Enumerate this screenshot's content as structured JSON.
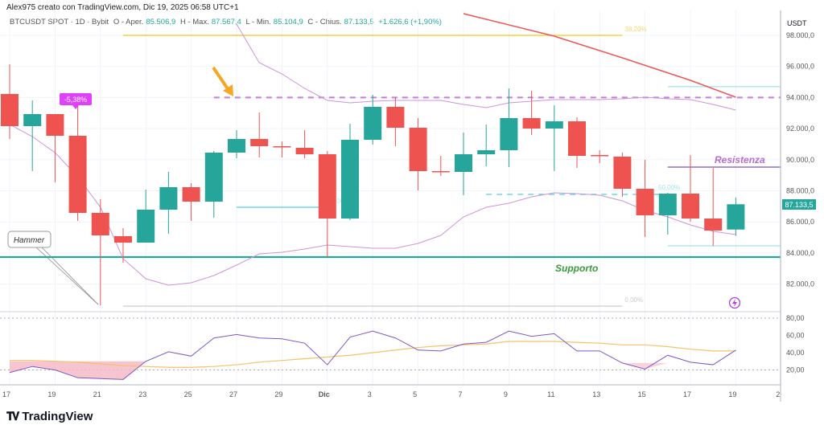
{
  "header": {
    "credit": "Alex975 creato con TradingView.com, Dic 19, 2025 06:58 UTC+1",
    "symbol": "BTCUSDT SPOT · 1D · Bybit",
    "open_label": "O - Aper.",
    "open_value": "85.506,9",
    "high_label": "H - Max.",
    "high_value": "87.567,4",
    "low_label": "L - Min.",
    "low_value": "85.104,9",
    "close_label": "C - Chius.",
    "close_value": "87.133,5",
    "change": "+1.626,6 (+1,90%)"
  },
  "logo": {
    "text": "TradingView"
  },
  "colors": {
    "up": "#26a69a",
    "down": "#ef5350",
    "bollinger": "#ce93d8",
    "ma": "#f05454",
    "rsi": "#7e57c2",
    "rsi_ma": "#f5c26b",
    "support": "#26a69a",
    "resistance": "#7b4fc9",
    "fib38": "#f5c518",
    "fib50": "#4dd0e1"
  },
  "chart_data": [
    {
      "type": "candlestick",
      "currency": "USDT",
      "ylim": [
        80000,
        99000
      ],
      "y_ticks": [
        "98.000,0",
        "96.000,0",
        "94.000,0",
        "92.000,0",
        "90.000,0",
        "88.000,0",
        "86.000,0",
        "84.000,0",
        "82.000,0"
      ],
      "y_tick_values": [
        98000,
        96000,
        94000,
        92000,
        90000,
        88000,
        86000,
        84000,
        82000
      ],
      "x_ticks": [
        "17",
        "19",
        "21",
        "23",
        "25",
        "27",
        "29",
        "Dic",
        "3",
        "5",
        "7",
        "9",
        "11",
        "13",
        "15",
        "17",
        "19",
        "2"
      ],
      "last_price_label": "87.133,5",
      "candles": [
        {
          "date": "Nov 17",
          "o": 94227,
          "h": 96140,
          "l": 91333,
          "c": 92160
        },
        {
          "date": "Nov 18",
          "o": 92160,
          "h": 93814,
          "l": 89266,
          "c": 92935
        },
        {
          "date": "Nov 19",
          "o": 92935,
          "h": 92935,
          "l": 88543,
          "c": 91540
        },
        {
          "date": "Nov 20",
          "o": 91540,
          "h": 93452,
          "l": 86062,
          "c": 86579
        },
        {
          "date": "Nov 21",
          "o": 86579,
          "h": 87457,
          "l": 80636,
          "c": 85132
        },
        {
          "date": "Nov 22",
          "o": 85080,
          "h": 85597,
          "l": 83374,
          "c": 84667
        },
        {
          "date": "Nov 23",
          "o": 84667,
          "h": 88078,
          "l": 84667,
          "c": 86785
        },
        {
          "date": "Nov 24",
          "o": 86785,
          "h": 89214,
          "l": 85235,
          "c": 88233
        },
        {
          "date": "Nov 25",
          "o": 88233,
          "h": 88491,
          "l": 86062,
          "c": 87302
        },
        {
          "date": "Nov 26",
          "o": 87302,
          "h": 90558,
          "l": 86268,
          "c": 90455
        },
        {
          "date": "Nov 27",
          "o": 90455,
          "h": 91902,
          "l": 90093,
          "c": 91333
        },
        {
          "date": "Nov 28",
          "o": 91333,
          "h": 93039,
          "l": 90145,
          "c": 90868
        },
        {
          "date": "Nov 29",
          "o": 90868,
          "h": 91178,
          "l": 90145,
          "c": 90816
        },
        {
          "date": "Nov 30",
          "o": 90765,
          "h": 91902,
          "l": 90093,
          "c": 90351
        },
        {
          "date": "Dec 1",
          "o": 90351,
          "h": 90558,
          "l": 83736,
          "c": 86216
        },
        {
          "date": "Dec 2",
          "o": 86216,
          "h": 92315,
          "l": 86113,
          "c": 91281
        },
        {
          "date": "Dec 3",
          "o": 91281,
          "h": 94176,
          "l": 90972,
          "c": 93400
        },
        {
          "date": "Dec 4",
          "o": 93400,
          "h": 94021,
          "l": 90868,
          "c": 92057
        },
        {
          "date": "Dec 5",
          "o": 92057,
          "h": 92677,
          "l": 88026,
          "c": 89266
        },
        {
          "date": "Dec 6",
          "o": 89266,
          "h": 90248,
          "l": 88956,
          "c": 89214
        },
        {
          "date": "Dec 7",
          "o": 89214,
          "h": 91747,
          "l": 87715,
          "c": 90351
        },
        {
          "date": "Dec 8",
          "o": 90351,
          "h": 92264,
          "l": 89576,
          "c": 90610
        },
        {
          "date": "Dec 9",
          "o": 90610,
          "h": 94589,
          "l": 89524,
          "c": 92677
        },
        {
          "date": "Dec 10",
          "o": 92677,
          "h": 94434,
          "l": 91592,
          "c": 92005
        },
        {
          "date": "Dec 11",
          "o": 92005,
          "h": 93504,
          "l": 89266,
          "c": 92470
        },
        {
          "date": "Dec 12",
          "o": 92470,
          "h": 92729,
          "l": 89473,
          "c": 90248
        },
        {
          "date": "Dec 13",
          "o": 90300,
          "h": 90610,
          "l": 89783,
          "c": 90248
        },
        {
          "date": "Dec 14",
          "o": 90196,
          "h": 90455,
          "l": 87612,
          "c": 88129
        },
        {
          "date": "Dec 15",
          "o": 88129,
          "h": 89990,
          "l": 85028,
          "c": 86423
        },
        {
          "date": "Dec 16",
          "o": 86423,
          "h": 87870,
          "l": 85183,
          "c": 87818
        },
        {
          "date": "Dec 17",
          "o": 87818,
          "h": 90300,
          "l": 86010,
          "c": 86216
        },
        {
          "date": "Dec 18",
          "o": 86216,
          "h": 89473,
          "l": 84460,
          "c": 85442
        },
        {
          "date": "Dec 19",
          "o": 85506.9,
          "h": 87567.4,
          "l": 85104.9,
          "c": 87133.5
        }
      ],
      "bollinger_upper": [
        null,
        null,
        null,
        null,
        null,
        null,
        null,
        null,
        null,
        null,
        98724,
        96243,
        95519,
        94589,
        93814,
        93659,
        93762,
        93814,
        93814,
        93814,
        93556,
        93349,
        93659,
        93762,
        93866,
        93866,
        93866,
        93917,
        94021,
        93917,
        93866,
        93556,
        93194
      ],
      "bollinger_lower": [
        92264,
        91488,
        90455,
        88904,
        86940,
        83633,
        82341,
        81928,
        82083,
        82548,
        83219,
        83943,
        84046,
        84253,
        84512,
        84408,
        84305,
        84305,
        84615,
        85132,
        86320,
        86940,
        87198,
        87612,
        87870,
        87818,
        87715,
        87353,
        86733,
        86320,
        85803,
        85390,
        85183
      ],
      "moving_average": [
        {
          "date": "Dec 7",
          "v": 99395
        },
        {
          "date": "Dec 11",
          "v": 97948
        },
        {
          "date": "Dec 14",
          "v": 96553
        },
        {
          "date": "Dec 17",
          "v": 95106
        },
        {
          "date": "Dec 19",
          "v": 94021
        }
      ],
      "levels": [
        {
          "name": "fib-38",
          "price": 98000,
          "from": "Nov 22",
          "to": "Dec 14",
          "label": "38,20%",
          "style": "solid"
        },
        {
          "name": "resistance-dashed",
          "price": 94000,
          "from": "Nov 26",
          "to": "Dec 21",
          "label": "",
          "style": "dashed"
        },
        {
          "name": "fib-50-left",
          "price": 86940,
          "from": "Nov 27",
          "to": "Dec 1",
          "label": "50,00%",
          "style": "solid"
        },
        {
          "name": "fib-50-right",
          "price": 87767,
          "from": "Dec 8",
          "to": "Dec 16",
          "label": "50,00%",
          "style": "dashed"
        },
        {
          "name": "fib-0",
          "price": 80580,
          "from": "Nov 22",
          "to": "Dec 14",
          "label": "0,00%",
          "style": "solid"
        },
        {
          "name": "range-top",
          "price": 94700,
          "from": "Dec 16",
          "to": "Dec 21",
          "label": "",
          "style": "solid"
        },
        {
          "name": "range-bottom",
          "price": 84460,
          "from": "Dec 16",
          "to": "Dec 21",
          "label": "",
          "style": "solid"
        },
        {
          "name": "resistance",
          "price": 89525,
          "from": "Dec 16",
          "to": "Dec 21",
          "label": "Resistenza",
          "style": "solid"
        },
        {
          "name": "support",
          "price": 83736,
          "from": "Nov 17",
          "to": "Dec 21",
          "label": "Supporto",
          "style": "solid"
        }
      ],
      "annotations": {
        "hammer": "Hammer",
        "drop": "-5,38%"
      }
    },
    {
      "type": "line",
      "ylim": [
        0,
        90
      ],
      "y_ticks": [
        "80,00",
        "60,00",
        "40,00",
        "20,00"
      ],
      "y_tick_values": [
        80,
        60,
        40,
        20
      ],
      "rsi": [
        17,
        24,
        20,
        11,
        10,
        9,
        30,
        41,
        36,
        57,
        61,
        57,
        56,
        51,
        26,
        58,
        65,
        57,
        43,
        42,
        50,
        52,
        65,
        59,
        62,
        42,
        42,
        28,
        21,
        37,
        29,
        26,
        43
      ],
      "rsi_ma": [
        31,
        31,
        30,
        29,
        27,
        25,
        24,
        23,
        23,
        24,
        26,
        29,
        31,
        33,
        35,
        37,
        40,
        43,
        46,
        48,
        49,
        50,
        53,
        53,
        53,
        52,
        51,
        49,
        49,
        47,
        44,
        42,
        42
      ],
      "bands": [
        80,
        20
      ]
    }
  ]
}
